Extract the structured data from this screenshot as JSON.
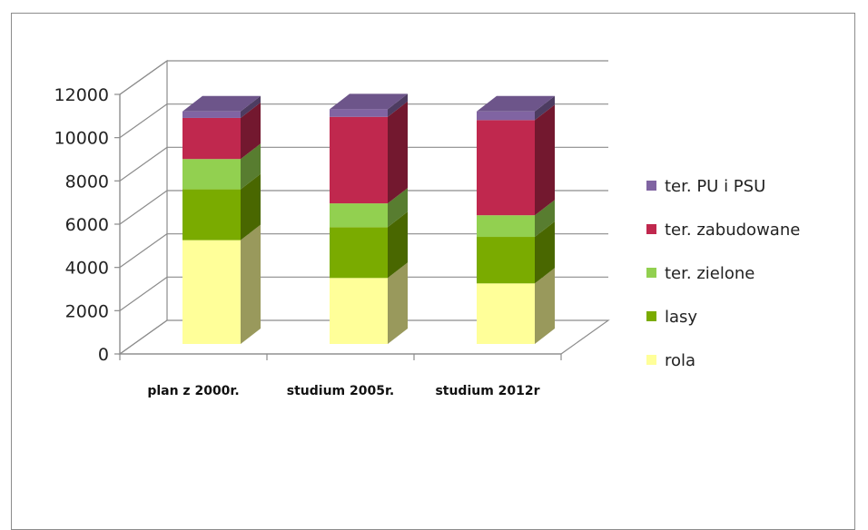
{
  "chart_data": {
    "type": "bar",
    "stacked": true,
    "three_d": true,
    "title": "",
    "xlabel": "",
    "ylabel": "",
    "categories": [
      "plan z 2000r.",
      "studium 2005r.",
      "studium 2012r"
    ],
    "ylim": [
      0,
      12000
    ],
    "yticks": [
      0,
      2000,
      4000,
      6000,
      8000,
      10000,
      12000
    ],
    "grid": true,
    "legend_position": "right",
    "series": [
      {
        "name": "rola",
        "values": [
          4800,
          3050,
          2800
        ],
        "color": "#ffff99"
      },
      {
        "name": "lasy",
        "values": [
          2350,
          2350,
          2150
        ],
        "color": "#7aab00"
      },
      {
        "name": "ter. zielone",
        "values": [
          1400,
          1100,
          1000
        ],
        "color": "#92d050"
      },
      {
        "name": "ter. zabudowane",
        "values": [
          1900,
          4000,
          4400
        ],
        "color": "#c0284e"
      },
      {
        "name": "ter. PU i PSU",
        "values": [
          300,
          350,
          400
        ],
        "color": "#8064a2"
      }
    ],
    "legend_order": [
      "ter. PU i PSU",
      "ter. zabudowane",
      "ter. zielone",
      "lasy",
      "rola"
    ]
  }
}
